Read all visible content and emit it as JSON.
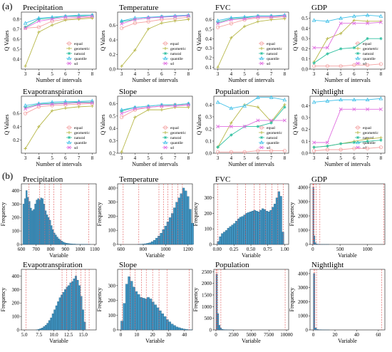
{
  "panel_labels": {
    "a": "(a)",
    "b": "(b)"
  },
  "methods": [
    {
      "name": "equal",
      "color": "#f4a0a0",
      "marker": "circle"
    },
    {
      "name": "geometric",
      "color": "#b8b84a",
      "marker": "plus"
    },
    {
      "name": "natural",
      "color": "#30c0a0",
      "marker": "star"
    },
    {
      "name": "quantile",
      "color": "#40c0e8",
      "marker": "triangle"
    },
    {
      "name": "sd",
      "color": "#e070e0",
      "marker": "cross"
    }
  ],
  "chart_data": [
    {
      "type": "line",
      "title": "Precipitation",
      "xlabel": "Number of intervals",
      "ylabel": "Q Values",
      "x": [
        3,
        4,
        5,
        6,
        7,
        8
      ],
      "ylim": [
        0.3,
        0.87
      ],
      "yticks": [
        0.4,
        0.5,
        0.6,
        0.7,
        0.8
      ],
      "series": [
        {
          "name": "equal",
          "values": [
            0.71,
            0.72,
            0.78,
            0.8,
            0.81,
            0.82
          ]
        },
        {
          "name": "geometric",
          "values": [
            0.33,
            0.67,
            0.74,
            0.79,
            0.8,
            0.81
          ]
        },
        {
          "name": "natural",
          "values": [
            0.72,
            0.8,
            0.81,
            0.83,
            0.83,
            0.84
          ]
        },
        {
          "name": "quantile",
          "values": [
            0.76,
            0.81,
            0.82,
            0.83,
            0.84,
            0.84
          ]
        },
        {
          "name": "sd",
          "values": [
            0.71,
            0.78,
            0.8,
            0.82,
            0.82,
            0.83
          ]
        }
      ]
    },
    {
      "type": "line",
      "title": "Temperature",
      "xlabel": "Number of intervals",
      "ylabel": "Q Values",
      "x": [
        3,
        4,
        5,
        6,
        7,
        8
      ],
      "ylim": [
        0.0,
        0.78
      ],
      "yticks": [
        0.0,
        0.2,
        0.4,
        0.6
      ],
      "series": [
        {
          "name": "equal",
          "values": [
            0.56,
            0.63,
            0.65,
            0.68,
            0.69,
            0.71
          ]
        },
        {
          "name": "geometric",
          "values": [
            0.04,
            0.26,
            0.55,
            0.63,
            0.66,
            0.68
          ]
        },
        {
          "name": "natural",
          "values": [
            0.65,
            0.68,
            0.7,
            0.72,
            0.72,
            0.73
          ]
        },
        {
          "name": "quantile",
          "values": [
            0.66,
            0.7,
            0.71,
            0.72,
            0.73,
            0.74
          ]
        },
        {
          "name": "sd",
          "values": [
            0.62,
            0.68,
            0.7,
            0.71,
            0.72,
            0.73
          ]
        }
      ]
    },
    {
      "type": "line",
      "title": "FVC",
      "xlabel": "Number of intervals",
      "ylabel": "Q Values",
      "x": [
        3,
        4,
        5,
        6,
        7,
        8
      ],
      "ylim": [
        0.08,
        0.68
      ],
      "yticks": [
        0.1,
        0.2,
        0.3,
        0.4,
        0.5,
        0.6
      ],
      "series": [
        {
          "name": "equal",
          "values": [
            0.52,
            0.56,
            0.6,
            0.62,
            0.62,
            0.63
          ]
        },
        {
          "name": "geometric",
          "values": [
            0.1,
            0.41,
            0.53,
            0.58,
            0.6,
            0.61
          ]
        },
        {
          "name": "natural",
          "values": [
            0.57,
            0.61,
            0.62,
            0.64,
            0.64,
            0.64
          ]
        },
        {
          "name": "quantile",
          "values": [
            0.59,
            0.62,
            0.63,
            0.64,
            0.64,
            0.65
          ]
        },
        {
          "name": "sd",
          "values": [
            0.56,
            0.6,
            0.61,
            0.63,
            0.63,
            0.64
          ]
        }
      ]
    },
    {
      "type": "line",
      "title": "GDP",
      "xlabel": "Number of intervals",
      "ylabel": "Q Values",
      "x": [
        3,
        4,
        5,
        6,
        7,
        8
      ],
      "ylim": [
        0.0,
        0.56
      ],
      "yticks": [
        0.0,
        0.1,
        0.2,
        0.3,
        0.4,
        0.5
      ],
      "series": [
        {
          "name": "equal",
          "values": [
            0.03,
            0.03,
            0.03,
            0.04,
            0.04,
            0.05
          ]
        },
        {
          "name": "geometric",
          "values": [
            0.07,
            0.3,
            0.35,
            0.48,
            0.47,
            0.47
          ]
        },
        {
          "name": "natural",
          "values": [
            0.06,
            0.15,
            0.2,
            0.21,
            0.3,
            0.3
          ]
        },
        {
          "name": "quantile",
          "values": [
            0.48,
            0.47,
            0.5,
            0.52,
            0.53,
            0.52
          ]
        },
        {
          "name": "sd",
          "values": [
            0.21,
            0.21,
            0.45,
            0.45,
            0.45,
            0.46
          ]
        }
      ]
    },
    {
      "type": "line",
      "title": "Evapotranspiration",
      "xlabel": "Number of intervals",
      "ylabel": "Q Values",
      "x": [
        3,
        4,
        5,
        6,
        7,
        8
      ],
      "ylim": [
        0.0,
        0.86
      ],
      "yticks": [
        0.2,
        0.4,
        0.6
      ],
      "series": [
        {
          "name": "equal",
          "values": [
            0.6,
            0.7,
            0.72,
            0.73,
            0.74,
            0.75
          ]
        },
        {
          "name": "geometric",
          "values": [
            0.07,
            0.4,
            0.64,
            0.68,
            0.7,
            0.71
          ]
        },
        {
          "name": "natural",
          "values": [
            0.69,
            0.74,
            0.75,
            0.76,
            0.77,
            0.77
          ]
        },
        {
          "name": "quantile",
          "values": [
            0.72,
            0.75,
            0.77,
            0.78,
            0.78,
            0.79
          ]
        },
        {
          "name": "sd",
          "values": [
            0.67,
            0.73,
            0.74,
            0.75,
            0.76,
            0.76
          ]
        }
      ]
    },
    {
      "type": "line",
      "title": "Slope",
      "xlabel": "Number of intervals",
      "ylabel": "Q Values",
      "x": [
        3,
        4,
        5,
        6,
        7,
        8
      ],
      "ylim": [
        0.2,
        0.66
      ],
      "yticks": [
        0.2,
        0.3,
        0.4,
        0.5,
        0.6
      ],
      "series": [
        {
          "name": "equal",
          "values": [
            0.49,
            0.55,
            0.57,
            0.58,
            0.59,
            0.59
          ]
        },
        {
          "name": "geometric",
          "values": [
            0.21,
            0.49,
            0.55,
            0.55,
            0.57,
            0.57
          ]
        },
        {
          "name": "natural",
          "values": [
            0.54,
            0.57,
            0.58,
            0.59,
            0.59,
            0.6
          ]
        },
        {
          "name": "quantile",
          "values": [
            0.55,
            0.57,
            0.58,
            0.59,
            0.59,
            0.6
          ]
        },
        {
          "name": "sd",
          "values": [
            0.52,
            0.56,
            0.57,
            0.58,
            0.58,
            0.59
          ]
        }
      ]
    },
    {
      "type": "line",
      "title": "Population",
      "xlabel": "Number of intervals",
      "ylabel": "Q Values",
      "x": [
        3,
        4,
        5,
        6,
        7,
        8
      ],
      "ylim": [
        0.0,
        0.47
      ],
      "yticks": [
        0.0,
        0.1,
        0.2,
        0.3,
        0.4
      ],
      "series": [
        {
          "name": "equal",
          "values": [
            0.01,
            0.01,
            0.01,
            0.02,
            0.02,
            0.02
          ]
        },
        {
          "name": "geometric",
          "values": [
            0.05,
            0.25,
            0.4,
            0.38,
            0.26,
            0.4
          ]
        },
        {
          "name": "natural",
          "values": [
            0.05,
            0.15,
            0.22,
            0.22,
            0.25,
            0.38
          ]
        },
        {
          "name": "quantile",
          "values": [
            0.42,
            0.37,
            0.39,
            0.46,
            0.46,
            0.44
          ]
        },
        {
          "name": "sd",
          "values": [
            0.22,
            0.22,
            0.22,
            0.27,
            0.27,
            0.27
          ]
        }
      ]
    },
    {
      "type": "line",
      "title": "Nightlight",
      "xlabel": "Number of intervals",
      "ylabel": "Q Values",
      "x": [
        3,
        4,
        5,
        6,
        7,
        8
      ],
      "ylim": [
        0.0,
        0.48
      ],
      "yticks": [
        0.0,
        0.1,
        0.2,
        0.3,
        0.4
      ],
      "series": [
        {
          "name": "equal",
          "values": [
            0.02,
            0.03,
            0.03,
            0.04,
            0.04,
            0.05
          ]
        },
        {
          "name": "geometric",
          "values": [
            0.05,
            0.06,
            0.08,
            0.1,
            0.12,
            0.13
          ]
        },
        {
          "name": "natural",
          "values": [
            0.05,
            0.06,
            0.08,
            0.09,
            0.1,
            0.11
          ]
        },
        {
          "name": "quantile",
          "values": [
            0.43,
            0.44,
            0.45,
            0.45,
            0.45,
            0.46
          ]
        },
        {
          "name": "sd",
          "values": [
            0.09,
            0.09,
            0.37,
            0.37,
            0.37,
            0.37
          ]
        }
      ]
    },
    {
      "type": "bar",
      "title": "Precipitation",
      "xlabel": "Variable",
      "ylabel": "Frequency",
      "xlim": [
        600,
        1110
      ],
      "ylim": [
        0,
        450
      ],
      "xticks": [
        600,
        700,
        800,
        900,
        1000,
        1100
      ],
      "yticks": [
        0,
        100,
        200,
        300,
        400
      ],
      "bin_start": 610,
      "bin_width": 10,
      "values": [
        300,
        340,
        400,
        350,
        320,
        270,
        250,
        260,
        300,
        330,
        340,
        330,
        345,
        340,
        300,
        250,
        220,
        200,
        180,
        140,
        110,
        85,
        70,
        55,
        42,
        33,
        25,
        18,
        13,
        10,
        8,
        6,
        5,
        4,
        3,
        3,
        2,
        2,
        1,
        1,
        1,
        1,
        1,
        1,
        1,
        1
      ],
      "cutlines": [
        650,
        725,
        760,
        790,
        820,
        870,
        1060
      ]
    },
    {
      "type": "bar",
      "title": "Temperature",
      "xlabel": "Variable",
      "ylabel": "Frequency",
      "xlim": [
        570,
        1240
      ],
      "ylim": [
        0,
        430
      ],
      "xticks": [
        600,
        800,
        1000,
        1200
      ],
      "yticks": [
        0,
        100,
        200,
        300,
        400
      ],
      "bin_start": 750,
      "bin_width": 20,
      "values": [
        1,
        2,
        3,
        5,
        8,
        12,
        20,
        30,
        45,
        60,
        80,
        105,
        130,
        160,
        190,
        220,
        260,
        300,
        330,
        360,
        400,
        380,
        340,
        250,
        150
      ],
      "cutlines": [
        620,
        760,
        940,
        980,
        1020,
        1060,
        1110,
        1150
      ]
    },
    {
      "type": "bar",
      "title": "FVC",
      "xlabel": "Variable",
      "ylabel": "Frequency",
      "xlim": [
        -0.05,
        1.06
      ],
      "ylim": [
        0,
        390
      ],
      "xticks": [
        0.0,
        0.25,
        0.5,
        0.75,
        1.0
      ],
      "yticks": [
        0,
        100,
        200,
        300
      ],
      "bin_start": 0.0,
      "bin_width": 0.03,
      "values": [
        20,
        50,
        70,
        80,
        90,
        105,
        115,
        125,
        135,
        150,
        165,
        175,
        180,
        190,
        200,
        205,
        210,
        215,
        220,
        215,
        210,
        220,
        230,
        225,
        215,
        210,
        220,
        240,
        260,
        300,
        340,
        310,
        80
      ],
      "cutlines": [
        0.01,
        0.3,
        0.42,
        0.55,
        0.63,
        0.72,
        0.81,
        0.9,
        0.98
      ]
    },
    {
      "type": "bar",
      "title": "GDP",
      "xlabel": "Variable",
      "ylabel": "Frequency",
      "xlim": [
        -50,
        1320
      ],
      "ylim": [
        0,
        4250
      ],
      "xticks": [
        0,
        500,
        1000
      ],
      "yticks": [
        0,
        1000,
        2000,
        3000,
        4000
      ],
      "bin_start": 0,
      "bin_width": 20,
      "values": [
        4000,
        600,
        120,
        40,
        15,
        8,
        5,
        3,
        2,
        2,
        1,
        1,
        1,
        1,
        1
      ],
      "cutlines": [
        2,
        10,
        25,
        60,
        130,
        1300
      ]
    },
    {
      "type": "bar",
      "title": "Evapotranspiration",
      "xlabel": "Variable",
      "ylabel": "Frequency",
      "xlim": [
        4.5,
        17.2
      ],
      "ylim": [
        0,
        450
      ],
      "xticks": [
        5.0,
        7.5,
        10.0,
        12.5,
        15.0
      ],
      "yticks": [
        0,
        100,
        200,
        300,
        400
      ],
      "bin_start": 7.0,
      "bin_width": 0.3,
      "values": [
        2,
        5,
        10,
        15,
        25,
        35,
        50,
        70,
        90,
        120,
        150,
        180,
        210,
        240,
        260,
        280,
        300,
        320,
        330,
        350,
        360,
        380,
        400,
        370,
        330,
        250,
        150,
        60
      ],
      "cutlines": [
        5.3,
        11.4,
        12.2,
        13.0,
        13.8,
        14.6,
        15.3,
        16.0
      ]
    },
    {
      "type": "bar",
      "title": "Slope",
      "xlabel": "Variable",
      "ylabel": "Frequency",
      "xlim": [
        -2,
        45
      ],
      "ylim": [
        0,
        410
      ],
      "xticks": [
        0,
        10,
        20,
        30,
        40
      ],
      "yticks": [
        0,
        100,
        200,
        300
      ],
      "bin_start": 0,
      "bin_width": 1.5,
      "values": [
        60,
        180,
        310,
        360,
        330,
        290,
        260,
        240,
        220,
        215,
        210,
        220,
        210,
        190,
        170,
        150,
        130,
        110,
        90,
        70,
        55,
        40,
        30,
        20,
        15,
        10,
        6,
        4,
        2,
        1
      ],
      "cutlines": [
        1,
        6,
        9,
        13,
        16,
        20,
        24,
        29,
        43
      ]
    },
    {
      "type": "bar",
      "title": "Population",
      "xlabel": "Variable",
      "ylabel": "Frequency",
      "xlim": [
        -300,
        10300
      ],
      "ylim": [
        0,
        2600
      ],
      "xticks": [
        0,
        2500,
        5000,
        7500,
        10000
      ],
      "yticks": [
        0,
        500,
        1000,
        1500,
        2000,
        2500
      ],
      "bin_start": 0,
      "bin_width": 200,
      "values": [
        2400,
        700,
        200,
        80,
        30,
        15,
        8,
        5,
        3,
        2,
        1,
        1
      ],
      "cutlines": [
        20,
        80,
        250,
        700,
        9800
      ]
    },
    {
      "type": "bar",
      "title": "Nightlight",
      "xlabel": "Variable",
      "ylabel": "Frequency",
      "xlim": [
        -3,
        66
      ],
      "ylim": [
        0,
        4300
      ],
      "xticks": [
        0,
        20,
        40,
        60
      ],
      "yticks": [
        0,
        1000,
        2000,
        3000,
        4000
      ],
      "bin_start": 0,
      "bin_width": 1.5,
      "values": [
        4000,
        150,
        40,
        15,
        8,
        5,
        3,
        2,
        1,
        1
      ],
      "cutlines": [
        0.5,
        1.5,
        3,
        63
      ]
    }
  ]
}
